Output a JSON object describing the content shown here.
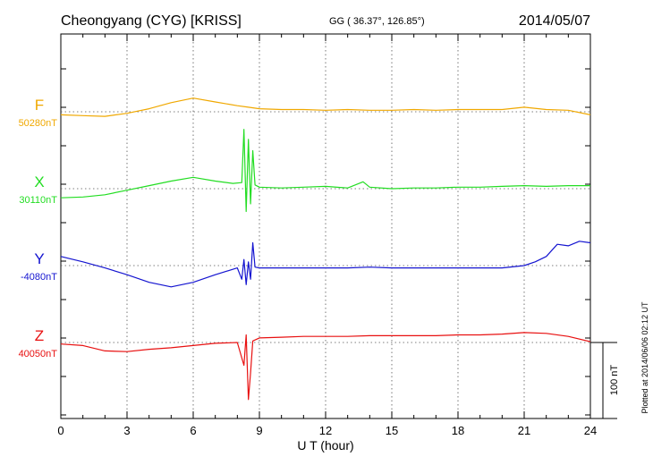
{
  "header": {
    "station": "Cheongyang (CYG)  [KRISS]",
    "coords": "GG ( 36.37°, 126.85°)",
    "date": "2014/05/07"
  },
  "side_note": "Plotted at 2014/06/06 02:12 UT",
  "scale_label": "100 nT",
  "chart_data": {
    "type": "line",
    "xlabel": "U T (hour)",
    "xlim": [
      0,
      24
    ],
    "xticks": [
      "0",
      "3",
      "6",
      "9",
      "12",
      "15",
      "18",
      "21",
      "24"
    ],
    "grid": true,
    "scale_bar_nT": 100,
    "series": [
      {
        "name": "F",
        "baseline_label": "50280nT",
        "color": "#f0a800",
        "points": [
          [
            0,
            -4
          ],
          [
            1,
            -5
          ],
          [
            2,
            -6
          ],
          [
            3,
            -2
          ],
          [
            4,
            4
          ],
          [
            5,
            12
          ],
          [
            6,
            18
          ],
          [
            7,
            13
          ],
          [
            8,
            8
          ],
          [
            8.5,
            6
          ],
          [
            9,
            4
          ],
          [
            10,
            3
          ],
          [
            11,
            3
          ],
          [
            12,
            2
          ],
          [
            13,
            3
          ],
          [
            14,
            2
          ],
          [
            15,
            2
          ],
          [
            16,
            3
          ],
          [
            17,
            2
          ],
          [
            18,
            3
          ],
          [
            19,
            3
          ],
          [
            20,
            3
          ],
          [
            21,
            6
          ],
          [
            22,
            3
          ],
          [
            23,
            2
          ],
          [
            24,
            -4
          ]
        ]
      },
      {
        "name": "X",
        "baseline_label": "30110nT",
        "color": "#22dd22",
        "points": [
          [
            0,
            -12
          ],
          [
            1,
            -11
          ],
          [
            2,
            -8
          ],
          [
            3,
            -2
          ],
          [
            4,
            4
          ],
          [
            5,
            10
          ],
          [
            6,
            15
          ],
          [
            7,
            10
          ],
          [
            7.8,
            7
          ],
          [
            8.2,
            8
          ],
          [
            8.3,
            78
          ],
          [
            8.4,
            -30
          ],
          [
            8.5,
            65
          ],
          [
            8.6,
            -20
          ],
          [
            8.7,
            50
          ],
          [
            8.8,
            5
          ],
          [
            9,
            2
          ],
          [
            10,
            1
          ],
          [
            11,
            2
          ],
          [
            12,
            3
          ],
          [
            13,
            1
          ],
          [
            13.7,
            9
          ],
          [
            14,
            2
          ],
          [
            15,
            0
          ],
          [
            16,
            1
          ],
          [
            17,
            1
          ],
          [
            18,
            2
          ],
          [
            19,
            2
          ],
          [
            20,
            3
          ],
          [
            21,
            4
          ],
          [
            22,
            3
          ],
          [
            23,
            4
          ],
          [
            24,
            4
          ]
        ]
      },
      {
        "name": "Y",
        "baseline_label": "-4080nT",
        "color": "#1414d0",
        "points": [
          [
            0,
            12
          ],
          [
            1,
            5
          ],
          [
            2,
            -3
          ],
          [
            3,
            -12
          ],
          [
            4,
            -22
          ],
          [
            5,
            -28
          ],
          [
            6,
            -22
          ],
          [
            7,
            -12
          ],
          [
            8,
            -3
          ],
          [
            8.2,
            -18
          ],
          [
            8.3,
            8
          ],
          [
            8.4,
            -25
          ],
          [
            8.5,
            5
          ],
          [
            8.6,
            -18
          ],
          [
            8.7,
            30
          ],
          [
            8.8,
            -2
          ],
          [
            9,
            -3
          ],
          [
            10,
            -3
          ],
          [
            11,
            -3
          ],
          [
            12,
            -3
          ],
          [
            13,
            -3
          ],
          [
            14,
            -2
          ],
          [
            15,
            -3
          ],
          [
            16,
            -3
          ],
          [
            17,
            -3
          ],
          [
            18,
            -3
          ],
          [
            19,
            -3
          ],
          [
            20,
            -3
          ],
          [
            21,
            0
          ],
          [
            21.5,
            5
          ],
          [
            22,
            12
          ],
          [
            22.5,
            28
          ],
          [
            23,
            26
          ],
          [
            23.5,
            32
          ],
          [
            24,
            30
          ]
        ]
      },
      {
        "name": "Z",
        "baseline_label": "40050nT",
        "color": "#e81010",
        "points": [
          [
            0,
            -2
          ],
          [
            1,
            -4
          ],
          [
            2,
            -11
          ],
          [
            3,
            -12
          ],
          [
            4,
            -9
          ],
          [
            5,
            -7
          ],
          [
            6,
            -4
          ],
          [
            7,
            -1
          ],
          [
            8,
            0
          ],
          [
            8.3,
            -30
          ],
          [
            8.4,
            10
          ],
          [
            8.5,
            -75
          ],
          [
            8.6,
            -40
          ],
          [
            8.7,
            2
          ],
          [
            9,
            6
          ],
          [
            10,
            7
          ],
          [
            11,
            8
          ],
          [
            12,
            8
          ],
          [
            13,
            8
          ],
          [
            14,
            9
          ],
          [
            15,
            9
          ],
          [
            16,
            9
          ],
          [
            17,
            9
          ],
          [
            18,
            10
          ],
          [
            19,
            10
          ],
          [
            20,
            11
          ],
          [
            21,
            13
          ],
          [
            22,
            12
          ],
          [
            23,
            8
          ],
          [
            24,
            1
          ]
        ]
      }
    ]
  }
}
